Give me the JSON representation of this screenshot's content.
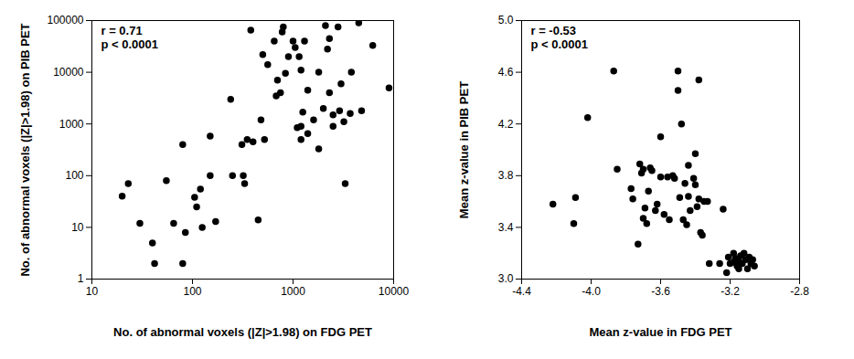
{
  "chart_data": [
    {
      "type": "scatter",
      "log": true,
      "grid": false,
      "color": "#000000",
      "marker": "circle",
      "x_label": "No. of abnormal voxels (|Z|>1.98) on FDG PET",
      "y_label": "No. of abnormal voxels (|Z|>1.98) on PIB PET",
      "annotations": [
        "r = 0.71",
        "p < 0.0001"
      ],
      "xlim": [
        10,
        10000
      ],
      "xticks": [
        10,
        100,
        1000,
        10000
      ],
      "ylim": [
        1,
        100000
      ],
      "yticks": [
        1,
        10,
        100,
        1000,
        10000,
        100000
      ],
      "x": [
        20,
        23,
        30,
        40,
        42,
        55,
        65,
        80,
        80,
        85,
        105,
        110,
        120,
        125,
        150,
        150,
        170,
        240,
        250,
        310,
        320,
        330,
        350,
        380,
        400,
        450,
        480,
        500,
        520,
        560,
        650,
        680,
        700,
        750,
        780,
        800,
        840,
        900,
        1000,
        1050,
        1100,
        1150,
        1200,
        1200,
        1200,
        1250,
        1300,
        1400,
        1400,
        1600,
        1800,
        1800,
        2000,
        2100,
        2200,
        2300,
        2300,
        2500,
        2500,
        2800,
        2900,
        3000,
        3200,
        3300,
        3700,
        3800,
        4500,
        4800,
        6200,
        9000
      ],
      "values": [
        40,
        70,
        12,
        5,
        2,
        80,
        12,
        400,
        2,
        8,
        38,
        25,
        55,
        10,
        100,
        580,
        13,
        3000,
        100,
        400,
        100,
        70,
        500,
        65000,
        450,
        14,
        1200,
        22000,
        500,
        14000,
        40000,
        3500,
        7000,
        4000,
        60000,
        75000,
        9500,
        20000,
        40000,
        30000,
        850,
        20000,
        900,
        11000,
        500,
        1700,
        40000,
        4500,
        650,
        1200,
        330,
        10000,
        2000,
        80000,
        28000,
        4000,
        45000,
        900,
        1500,
        75000,
        1800,
        6000,
        1100,
        70,
        1600,
        10000,
        90000,
        1800,
        33000,
        5000
      ]
    },
    {
      "type": "scatter",
      "grid": false,
      "color": "#000000",
      "marker": "circle",
      "x_label": "Mean z-value in FDG PET",
      "y_label": "Mean z-value in PIB PET",
      "annotations": [
        "r = -0.53",
        "p < 0.0001"
      ],
      "xlim": [
        -4.4,
        -2.8
      ],
      "xticks": [
        -4.4,
        {
          "value": -4,
          "label": "-4.0"
        },
        -3.6,
        -3.2,
        -2.8
      ],
      "ylim": [
        3,
        5
      ],
      "yticks": [
        {
          "value": 3,
          "label": "3.0"
        },
        3.4,
        3.8,
        4.2,
        4.6,
        {
          "value": 5,
          "label": "5.0"
        }
      ],
      "x": [
        -4.22,
        -4.1,
        -4.09,
        -4.02,
        -3.87,
        -3.85,
        -3.77,
        -3.76,
        -3.73,
        -3.72,
        -3.71,
        -3.7,
        -3.7,
        -3.69,
        -3.68,
        -3.67,
        -3.66,
        -3.65,
        -3.63,
        -3.62,
        -3.6,
        -3.6,
        -3.58,
        -3.56,
        -3.55,
        -3.53,
        -3.52,
        -3.5,
        -3.5,
        -3.49,
        -3.48,
        -3.47,
        -3.46,
        -3.45,
        -3.44,
        -3.44,
        -3.43,
        -3.41,
        -3.4,
        -3.4,
        -3.39,
        -3.38,
        -3.38,
        -3.37,
        -3.36,
        -3.35,
        -3.33,
        -3.32,
        -3.26,
        -3.24,
        -3.22,
        -3.21,
        -3.2,
        -3.18,
        -3.17,
        -3.16,
        -3.15,
        -3.14,
        -3.13,
        -3.12,
        -3.11,
        -3.1,
        -3.09,
        -3.08,
        -3.07,
        -3.06,
        -3.18,
        -3.15
      ],
      "values": [
        3.58,
        3.43,
        3.63,
        4.25,
        4.61,
        3.85,
        3.7,
        3.62,
        3.27,
        3.89,
        3.82,
        3.85,
        3.47,
        3.55,
        3.43,
        3.68,
        3.86,
        3.84,
        3.53,
        3.58,
        4.1,
        3.79,
        3.5,
        3.79,
        3.46,
        3.8,
        3.78,
        4.61,
        4.46,
        3.63,
        4.2,
        3.46,
        3.74,
        3.42,
        3.64,
        3.88,
        3.53,
        3.78,
        3.73,
        3.97,
        3.56,
        4.54,
        3.62,
        3.36,
        3.34,
        3.6,
        3.6,
        3.12,
        3.12,
        3.54,
        3.05,
        3.17,
        3.12,
        3.2,
        3.16,
        3.1,
        3.14,
        3.18,
        3.12,
        3.2,
        3.15,
        3.08,
        3.17,
        3.12,
        3.15,
        3.1,
        3.13,
        3.08
      ]
    }
  ]
}
